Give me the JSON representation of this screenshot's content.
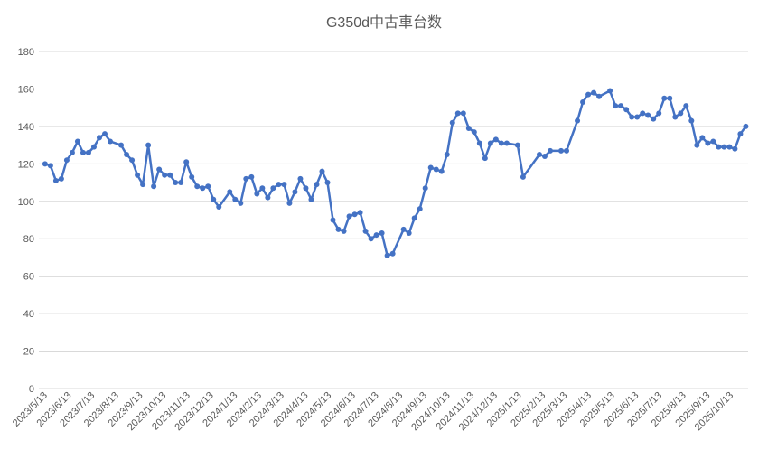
{
  "chart_data": {
    "type": "line",
    "title": "G350d中古車台数",
    "x": [
      "2023/5/13",
      "2023/5/20",
      "2023/5/27",
      "2023/6/3",
      "2023/6/10",
      "2023/6/17",
      "2023/6/24",
      "2023/7/1",
      "2023/7/8",
      "2023/7/15",
      "2023/7/22",
      "2023/7/29",
      "2023/8/5",
      "2023/8/19",
      "2023/8/26",
      "2023/9/2",
      "2023/9/9",
      "2023/9/16",
      "2023/9/23",
      "2023/9/30",
      "2023/10/7",
      "2023/10/14",
      "2023/10/21",
      "2023/10/28",
      "2023/11/4",
      "2023/11/11",
      "2023/11/18",
      "2023/11/25",
      "2023/12/2",
      "2023/12/9",
      "2023/12/16",
      "2023/12/23",
      "2024/1/6",
      "2024/1/13",
      "2024/1/20",
      "2024/1/27",
      "2024/2/3",
      "2024/2/10",
      "2024/2/17",
      "2024/2/24",
      "2024/3/2",
      "2024/3/9",
      "2024/3/16",
      "2024/3/23",
      "2024/3/30",
      "2024/4/6",
      "2024/4/13",
      "2024/4/20",
      "2024/4/27",
      "2024/5/4",
      "2024/5/11",
      "2024/5/18",
      "2024/5/25",
      "2024/6/1",
      "2024/6/8",
      "2024/6/15",
      "2024/6/22",
      "2024/6/29",
      "2024/7/6",
      "2024/7/13",
      "2024/7/20",
      "2024/7/27",
      "2024/8/3",
      "2024/8/17",
      "2024/8/24",
      "2024/8/31",
      "2024/9/7",
      "2024/9/14",
      "2024/9/21",
      "2024/9/28",
      "2024/10/5",
      "2024/10/12",
      "2024/10/19",
      "2024/10/26",
      "2024/11/2",
      "2024/11/9",
      "2024/11/16",
      "2024/11/23",
      "2024/11/30",
      "2024/12/7",
      "2024/12/14",
      "2024/12/21",
      "2024/12/28",
      "2025/1/11",
      "2025/1/18",
      "2025/2/8",
      "2025/2/15",
      "2025/2/22",
      "2025/3/8",
      "2025/3/15",
      "2025/3/29",
      "2025/4/5",
      "2025/4/12",
      "2025/4/19",
      "2025/4/26",
      "2025/5/10",
      "2025/5/17",
      "2025/5/24",
      "2025/5/31",
      "2025/6/7",
      "2025/6/14",
      "2025/6/21",
      "2025/6/28",
      "2025/7/5",
      "2025/7/12",
      "2025/7/19",
      "2025/7/26",
      "2025/8/2",
      "2025/8/9",
      "2025/8/16",
      "2025/8/23",
      "2025/8/30",
      "2025/9/6",
      "2025/9/13",
      "2025/9/20",
      "2025/9/27",
      "2025/10/4",
      "2025/10/11",
      "2025/10/18",
      "2025/10/25",
      "2025/11/1"
    ],
    "values": [
      120,
      119,
      111,
      112,
      122,
      126,
      132,
      126,
      126,
      129,
      134,
      136,
      132,
      130,
      125,
      122,
      114,
      109,
      130,
      108,
      117,
      114,
      114,
      110,
      110,
      121,
      113,
      108,
      107,
      108,
      101,
      97,
      105,
      101,
      99,
      112,
      113,
      104,
      107,
      102,
      107,
      109,
      109,
      99,
      105,
      112,
      107,
      101,
      109,
      116,
      110,
      90,
      85,
      84,
      92,
      93,
      94,
      84,
      80,
      82,
      83,
      71,
      72,
      85,
      83,
      91,
      96,
      107,
      118,
      117,
      116,
      125,
      142,
      147,
      147,
      139,
      137,
      131,
      123,
      131,
      133,
      131,
      131,
      130,
      113,
      125,
      124,
      127,
      127,
      127,
      143,
      153,
      157,
      158,
      156,
      159,
      151,
      151,
      149,
      145,
      145,
      147,
      146,
      144,
      147,
      155,
      155,
      145,
      147,
      151,
      143,
      130,
      134,
      131,
      132,
      129,
      129,
      129,
      128,
      136,
      140
    ],
    "color": "#4472c4",
    "xlim": [
      "2023/5/5",
      "2025/11/4"
    ],
    "xticks": [
      "2023/5/13",
      "2023/6/13",
      "2023/7/13",
      "2023/8/13",
      "2023/9/13",
      "2023/10/13",
      "2023/11/13",
      "2023/12/13",
      "2024/1/13",
      "2024/2/13",
      "2024/3/13",
      "2024/4/13",
      "2024/5/13",
      "2024/6/13",
      "2024/7/13",
      "2024/8/13",
      "2024/9/13",
      "2024/10/13",
      "2024/11/13",
      "2024/12/13",
      "2025/1/13",
      "2025/2/13",
      "2025/3/13",
      "2025/4/13",
      "2025/5/13",
      "2025/6/13",
      "2025/7/13",
      "2025/8/13",
      "2025/9/13",
      "2025/10/13"
    ],
    "ylim": [
      0,
      180
    ],
    "yticks": [
      0,
      20,
      40,
      60,
      80,
      100,
      120,
      140,
      160,
      180
    ],
    "grid": true
  }
}
